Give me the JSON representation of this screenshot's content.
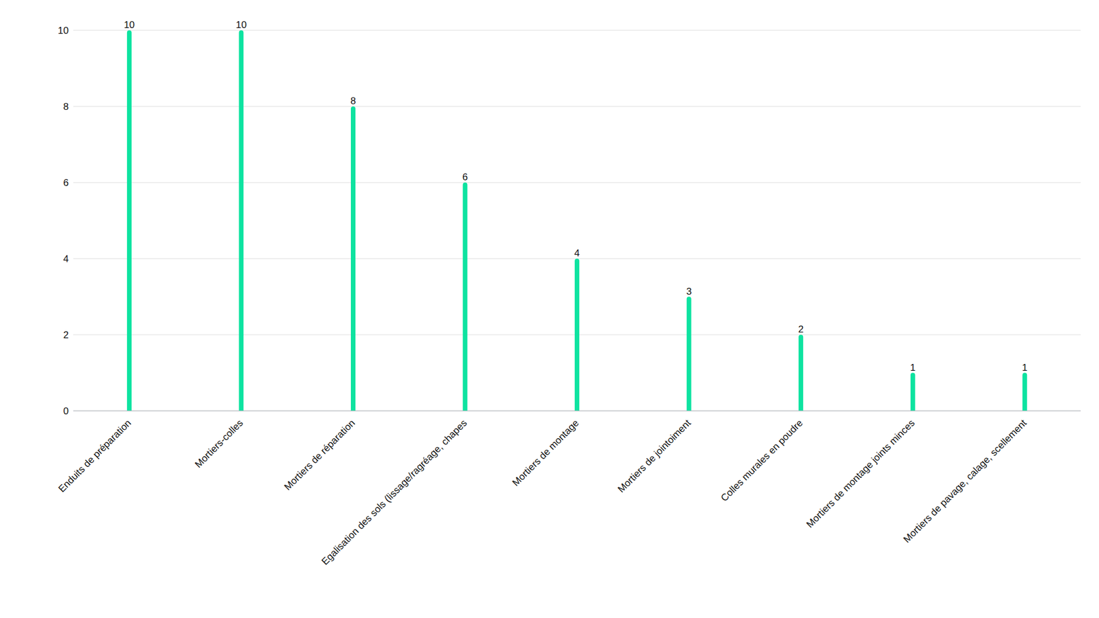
{
  "chart_data": {
    "type": "bar",
    "categories": [
      "Enduits de préparation",
      "Mortiers-colles",
      "Mortiers de réparation",
      "Egalisation des sols (lissage/ragréage, chapes",
      "Mortiers de montage",
      "Mortiers de jointoiment",
      "Colles murales en poudre",
      "Mortiers de montage joints minces",
      "Mortiers de pavage, calage, scellement"
    ],
    "values": [
      10,
      10,
      8,
      6,
      4,
      3,
      2,
      1,
      1
    ],
    "color": "#0de3a0",
    "ylim": [
      0,
      10
    ],
    "yticks": [
      0,
      2,
      4,
      6,
      8,
      10
    ],
    "grid": true,
    "data_labels": true
  }
}
